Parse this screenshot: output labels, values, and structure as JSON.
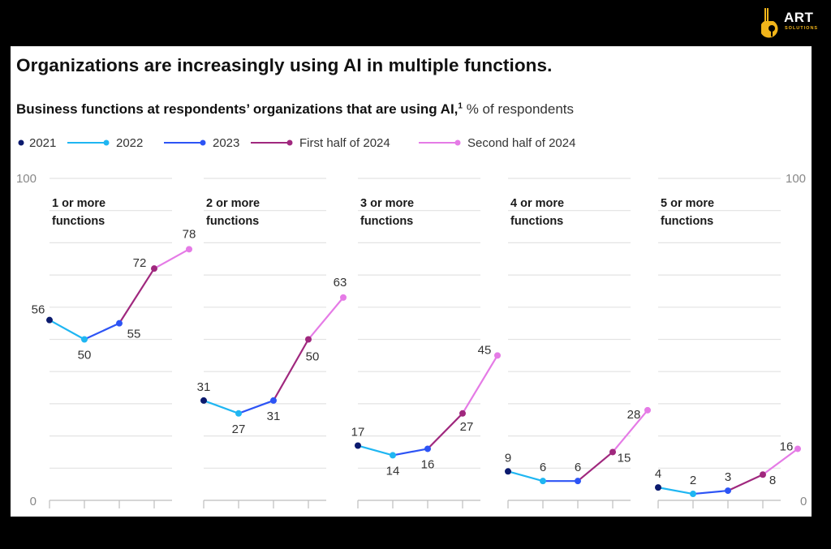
{
  "brand": {
    "name": "ART",
    "tagline": "SOLUTIONS",
    "color": "#f2b51a"
  },
  "header": {
    "title": "Organizations are increasingly using AI in multiple functions.",
    "subtitle_bold": "Business functions at respondents’ organizations that are using AI,",
    "footnote_mark": "1",
    "subtitle_unit": " % of respondents"
  },
  "chart_data": {
    "type": "line",
    "title": "Organizations are increasingly using AI in multiple functions.",
    "subtitle": "Business functions at respondents’ organizations that are using AI, % of respondents",
    "ylabel": "% of respondents",
    "ylim": [
      0,
      100
    ],
    "y_ticks": [
      "0",
      "100"
    ],
    "gridlines": [
      10,
      20,
      30,
      40,
      50,
      60,
      70,
      80,
      90,
      100
    ],
    "grid": true,
    "legend_position": "top",
    "periods": [
      "2021",
      "2022",
      "2023",
      "First half of 2024",
      "Second half of 2024"
    ],
    "series_colors": [
      "#0b1a6e",
      "#1fb6f2",
      "#2d54f5",
      "#a0287e",
      "#e57be6"
    ],
    "panels": [
      {
        "label_line1": "1 or more",
        "label_line2": "functions",
        "values": [
          56,
          50,
          55,
          72,
          78
        ],
        "labels": [
          "56",
          "50",
          "55",
          "72",
          "78"
        ]
      },
      {
        "label_line1": "2 or more",
        "label_line2": "functions",
        "values": [
          31,
          27,
          31,
          50,
          63
        ],
        "labels": [
          "31",
          "27",
          "31",
          "50",
          "63"
        ]
      },
      {
        "label_line1": "3 or more",
        "label_line2": "functions",
        "values": [
          17,
          14,
          16,
          27,
          45
        ],
        "labels": [
          "17",
          "14",
          "16",
          "27",
          "45"
        ]
      },
      {
        "label_line1": "4 or more",
        "label_line2": "functions",
        "values": [
          9,
          6,
          6,
          15,
          28
        ],
        "labels": [
          "9",
          "6",
          "6",
          "15",
          "28"
        ]
      },
      {
        "label_line1": "5 or more",
        "label_line2": "functions",
        "values": [
          4,
          2,
          3,
          8,
          16
        ],
        "labels": [
          "4",
          "2",
          "3",
          "8",
          "16"
        ]
      }
    ]
  },
  "legend": [
    {
      "label": "2021",
      "color": "#0b1a6e",
      "line": false
    },
    {
      "label": "2022",
      "color": "#1fb6f2",
      "line": true
    },
    {
      "label": "2023",
      "color": "#2d54f5",
      "line": true
    },
    {
      "label": "First half of 2024",
      "color": "#a0287e",
      "line": true
    },
    {
      "label": "Second half of 2024",
      "color": "#e57be6",
      "line": true
    }
  ]
}
